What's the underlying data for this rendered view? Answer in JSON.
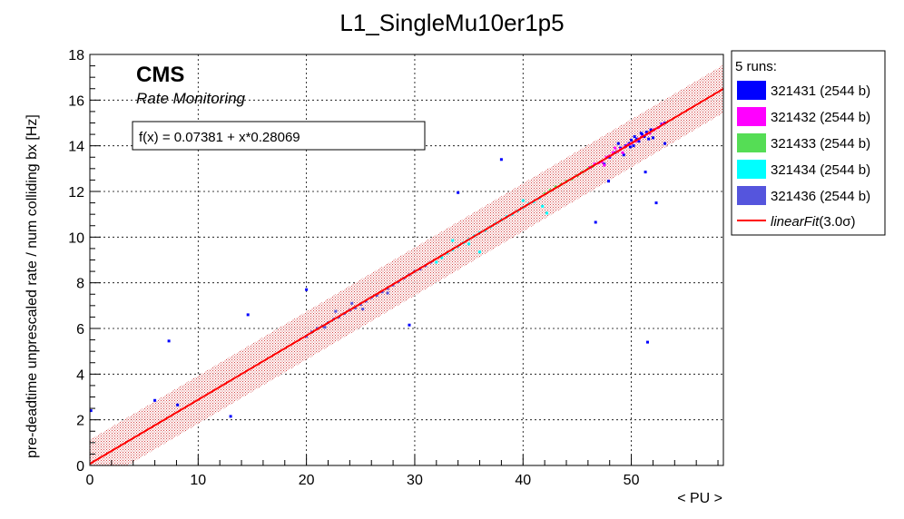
{
  "chart_data": {
    "type": "scatter",
    "title": "L1_SingleMu10er1p5",
    "xlabel": "< PU >",
    "ylabel": "pre-deadtime unprescaled rate / num colliding bx [Hz]",
    "xlim": [
      0,
      58.5
    ],
    "ylim": [
      0,
      18
    ],
    "x_ticks": [
      0,
      10,
      20,
      30,
      40,
      50
    ],
    "y_ticks": [
      0,
      2,
      4,
      6,
      8,
      10,
      12,
      14,
      16,
      18
    ],
    "grid": true,
    "legend_position": "right",
    "legend_header": "5 runs:",
    "cms_label": "CMS",
    "cms_sublabel": "Rate Monitoring",
    "fit_formula": "f(x) = 0.07381 + x*0.28069",
    "fit": {
      "name": "linearFit(3.0σ)",
      "legend_prefix": "linearFit",
      "legend_suffix": "(3.0σ)",
      "intercept": 0.07381,
      "slope": 0.28069,
      "band_halfwidth": 1.05,
      "color": "#ff0000"
    },
    "series": [
      {
        "name": "321431 (2544 b)",
        "color": "#0000ff",
        "points": [
          [
            0.1,
            2.4
          ],
          [
            6,
            2.85
          ],
          [
            7.3,
            5.45
          ],
          [
            8.1,
            2.65
          ],
          [
            13,
            2.15
          ],
          [
            14.6,
            6.6
          ],
          [
            20,
            7.7
          ],
          [
            29.5,
            6.15
          ],
          [
            34,
            11.95
          ],
          [
            38,
            13.4
          ],
          [
            46.7,
            10.65
          ],
          [
            47.9,
            12.45
          ],
          [
            51.3,
            12.85
          ],
          [
            51.5,
            5.4
          ],
          [
            52.3,
            11.5
          ],
          [
            53.1,
            14.1
          ],
          [
            47.5,
            13.2
          ],
          [
            48,
            13.5
          ],
          [
            48.5,
            13.7
          ],
          [
            49,
            13.9
          ],
          [
            49.3,
            13.6
          ],
          [
            49.5,
            14.0
          ],
          [
            49.8,
            14.1
          ],
          [
            50,
            14.25
          ],
          [
            50.2,
            14.0
          ],
          [
            50.3,
            14.4
          ],
          [
            50.5,
            14.3
          ],
          [
            50.7,
            14.2
          ],
          [
            50.9,
            14.55
          ],
          [
            51,
            14.5
          ],
          [
            51.2,
            14.4
          ],
          [
            51.4,
            14.6
          ],
          [
            51.6,
            14.3
          ],
          [
            51.8,
            14.7
          ],
          [
            52.8,
            14.95
          ],
          [
            53.1,
            15.0
          ],
          [
            52,
            14.35
          ],
          [
            48.8,
            14.1
          ],
          [
            49.9,
            13.95
          ]
        ]
      },
      {
        "name": "321432 (2544 b)",
        "color": "#ff00ff",
        "points": [
          [
            46.2,
            13.05
          ],
          [
            46.6,
            13.2
          ],
          [
            47,
            13.25
          ],
          [
            47.3,
            13.3
          ],
          [
            47.7,
            13.5
          ],
          [
            48,
            13.55
          ],
          [
            48.3,
            13.7
          ],
          [
            48.7,
            13.75
          ],
          [
            49,
            13.85
          ],
          [
            49.4,
            13.95
          ],
          [
            49.7,
            14.05
          ],
          [
            50,
            14.1
          ],
          [
            50.4,
            14.2
          ],
          [
            50.7,
            14.3
          ],
          [
            51,
            14.4
          ],
          [
            51.4,
            14.5
          ],
          [
            51.7,
            14.55
          ],
          [
            52.1,
            14.7
          ],
          [
            52.5,
            14.8
          ],
          [
            52.9,
            14.95
          ],
          [
            47.5,
            13.15
          ],
          [
            48.5,
            13.9
          ],
          [
            49.2,
            13.7
          ]
        ]
      },
      {
        "name": "321433 (2544 b)",
        "color": "#55dd55",
        "points": [
          [
            42,
            11.9
          ],
          [
            42.5,
            12.05
          ],
          [
            43,
            12.2
          ],
          [
            43.5,
            12.3
          ],
          [
            44,
            12.45
          ],
          [
            44.5,
            12.55
          ],
          [
            45,
            12.7
          ],
          [
            45.5,
            12.85
          ],
          [
            46,
            13.0
          ],
          [
            46.4,
            13.1
          ]
        ]
      },
      {
        "name": "321434 (2544 b)",
        "color": "#00ffff",
        "points": [
          [
            32,
            8.9
          ],
          [
            32.5,
            9.1
          ],
          [
            33,
            9.3
          ],
          [
            33.5,
            9.45
          ],
          [
            34,
            9.6
          ],
          [
            34.5,
            9.75
          ],
          [
            35,
            9.9
          ],
          [
            35.5,
            10.05
          ],
          [
            36,
            10.2
          ],
          [
            36.5,
            10.3
          ],
          [
            37,
            10.45
          ],
          [
            37.5,
            10.6
          ],
          [
            38,
            10.75
          ],
          [
            38.5,
            10.9
          ],
          [
            39,
            11.0
          ],
          [
            39.5,
            11.15
          ],
          [
            40,
            11.3
          ],
          [
            40.5,
            11.45
          ],
          [
            41,
            11.55
          ],
          [
            41.5,
            11.7
          ],
          [
            36,
            9.35
          ],
          [
            40,
            11.6
          ],
          [
            41.8,
            11.35
          ],
          [
            42.2,
            11.05
          ],
          [
            35,
            9.7
          ],
          [
            33.5,
            9.85
          ]
        ]
      },
      {
        "name": "321436 (2544 b)",
        "color": "#5555dd",
        "points": [
          [
            20,
            5.65
          ],
          [
            20.5,
            5.85
          ],
          [
            21,
            6.0
          ],
          [
            21.5,
            6.1
          ],
          [
            22,
            6.25
          ],
          [
            22.5,
            6.4
          ],
          [
            23,
            6.5
          ],
          [
            23.5,
            6.65
          ],
          [
            24,
            6.8
          ],
          [
            24.5,
            6.9
          ],
          [
            25,
            7.05
          ],
          [
            25.5,
            7.2
          ],
          [
            26,
            7.35
          ],
          [
            26.5,
            7.45
          ],
          [
            27,
            7.6
          ],
          [
            27.5,
            7.75
          ],
          [
            28,
            7.9
          ],
          [
            28.5,
            8.05
          ],
          [
            29,
            8.2
          ],
          [
            29.5,
            8.35
          ],
          [
            30,
            8.5
          ],
          [
            30.5,
            8.6
          ],
          [
            31,
            8.75
          ],
          [
            31.5,
            8.9
          ],
          [
            21.7,
            6.05
          ],
          [
            22.7,
            6.75
          ],
          [
            24.2,
            7.1
          ],
          [
            25.2,
            6.85
          ],
          [
            27.5,
            7.55
          ]
        ]
      }
    ]
  }
}
